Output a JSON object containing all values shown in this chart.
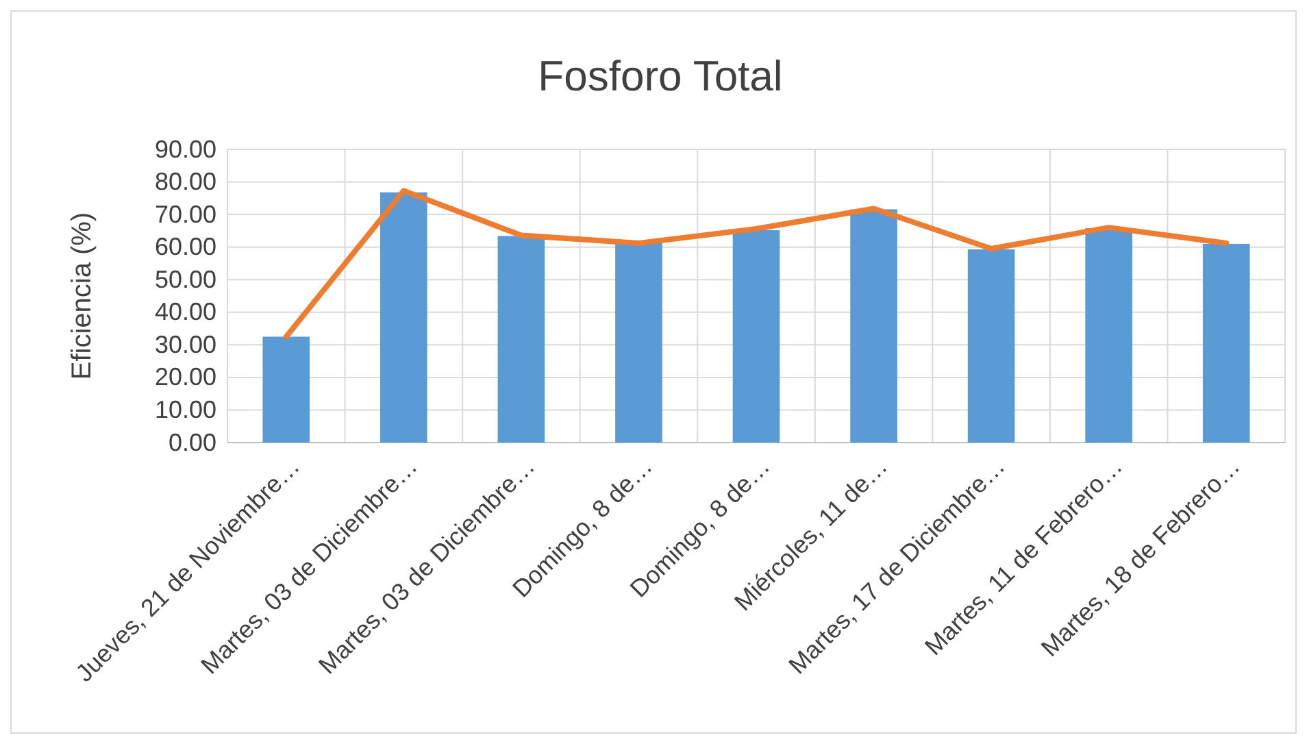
{
  "chart_data": {
    "type": "bar",
    "title": "Fosforo Total",
    "ylabel": "Eficiencia (%)",
    "categories": [
      "Jueves, 21 de Noviembre…",
      "Martes, 03 de Diciembre…",
      "Martes, 03 de Diciembre…",
      "Domingo, 8 de…",
      "Domingo, 8 de…",
      "Miércoles, 11 de…",
      "Martes, 17 de Diciembre…",
      "Martes, 11 de Febrero…",
      "Martes, 18 de Febrero…"
    ],
    "series": [
      {
        "color": "#5b9bd5",
        "values": [
          32.5,
          76.8,
          63.4,
          61.2,
          65.2,
          71.6,
          59.3,
          65.8,
          61.0
        ]
      },
      {
        "type": "line",
        "color": "#ed7d31",
        "values": [
          32.5,
          77.3,
          63.6,
          61.2,
          65.6,
          71.8,
          59.5,
          66.0,
          61.2
        ]
      }
    ],
    "ylim": [
      0,
      90
    ],
    "yticks": [
      {
        "value": 0,
        "label": "0.00"
      },
      {
        "value": 10,
        "label": "10.00"
      },
      {
        "value": 20,
        "label": "20.00"
      },
      {
        "value": 30,
        "label": "30.00"
      },
      {
        "value": 40,
        "label": "40.00"
      },
      {
        "value": 50,
        "label": "50.00"
      },
      {
        "value": 60,
        "label": "60.00"
      },
      {
        "value": 70,
        "label": "70.00"
      },
      {
        "value": 80,
        "label": "80.00"
      },
      {
        "value": 90,
        "label": "90.00"
      }
    ],
    "grid": true,
    "line_style": "solid",
    "marker": "none"
  }
}
